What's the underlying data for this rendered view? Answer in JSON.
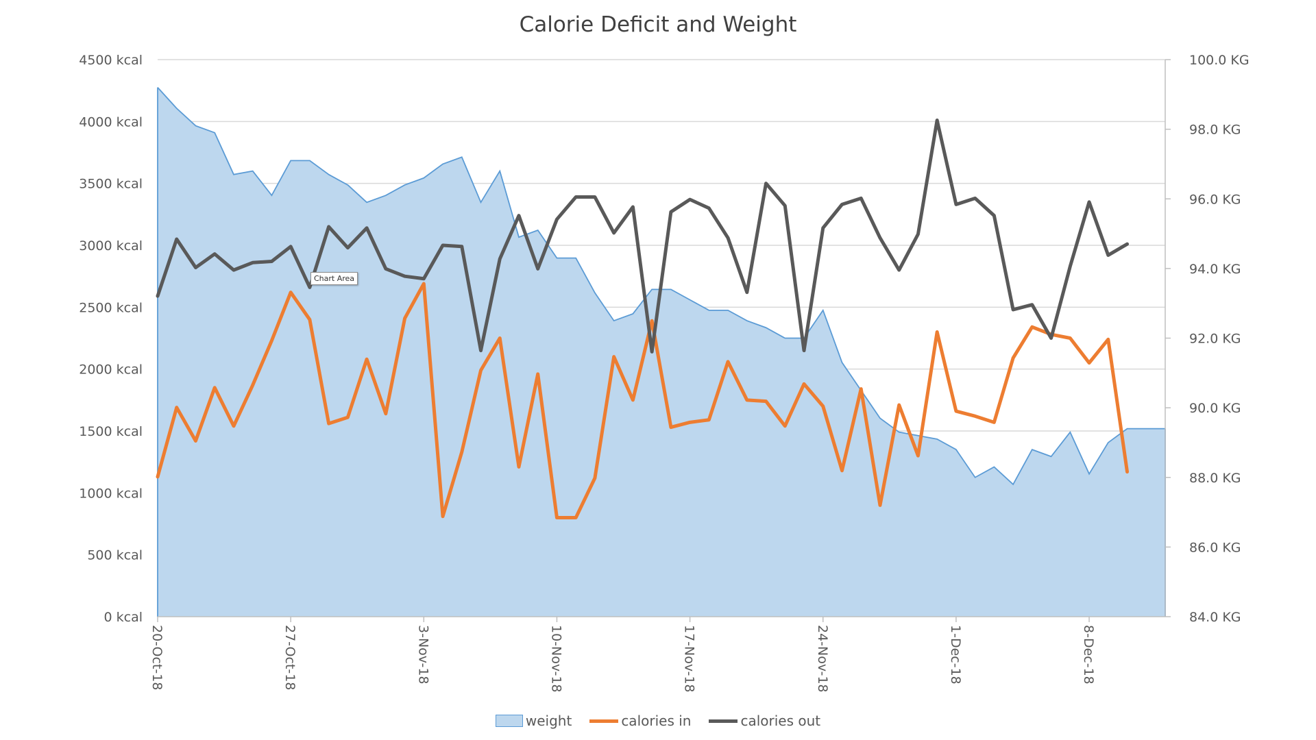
{
  "chart_data": {
    "type": "area+line",
    "title": "Calorie Deficit and Weight",
    "x_tick_labels": [
      "20-Oct-18",
      "27-Oct-18",
      "3-Nov-18",
      "10-Nov-18",
      "17-Nov-18",
      "24-Nov-18",
      "1-Dec-18",
      "8-Dec-18"
    ],
    "x_start": "2018-10-20",
    "days": 53,
    "y_left": {
      "ticks": [
        "0 kcal",
        "500 kcal",
        "1000 kcal",
        "1500 kcal",
        "2000 kcal",
        "2500 kcal",
        "3000 kcal",
        "3500 kcal",
        "4000 kcal",
        "4500 kcal"
      ],
      "range": [
        0,
        4500
      ]
    },
    "y_right": {
      "ticks": [
        "84.0 KG",
        "86.0 KG",
        "88.0 KG",
        "90.0 KG",
        "92.0 KG",
        "94.0 KG",
        "96.0 KG",
        "98.0 KG",
        "100.0 KG"
      ],
      "range": [
        84,
        100
      ]
    },
    "gridlines": true,
    "legend_position": "bottom",
    "series": [
      {
        "name": "weight",
        "axis": "right",
        "kind": "area",
        "color": "#5b9bd5",
        "fill": "#bdd7ee",
        "values": [
          99.2,
          98.6,
          98.1,
          97.9,
          96.7,
          96.8,
          96.1,
          97.1,
          97.1,
          96.7,
          96.4,
          95.9,
          96.1,
          96.4,
          96.6,
          97.0,
          97.2,
          95.9,
          96.8,
          94.9,
          95.1,
          94.3,
          94.3,
          93.3,
          92.5,
          92.7,
          93.4,
          93.4,
          93.1,
          92.8,
          92.8,
          92.5,
          92.3,
          92.0,
          92.0,
          92.8,
          91.3,
          90.5,
          89.7,
          89.3,
          89.2,
          89.1,
          88.8,
          88.0,
          88.3,
          87.8,
          88.8,
          88.6,
          89.3,
          88.1,
          89.0,
          89.4,
          89.4,
          89.4
        ]
      },
      {
        "name": "calories in",
        "axis": "left",
        "kind": "line",
        "color": "#ed7d31",
        "values": [
          1130,
          1690,
          1420,
          1850,
          1540,
          1870,
          2230,
          2620,
          2400,
          1560,
          1610,
          2080,
          1640,
          2410,
          2690,
          810,
          1330,
          1990,
          2250,
          1210,
          1960,
          800,
          800,
          1120,
          2100,
          1750,
          2390,
          1530,
          1570,
          1590,
          2060,
          1750,
          1740,
          1540,
          1880,
          1700,
          1180,
          1840,
          900,
          1710,
          1300,
          2300,
          1660,
          1620,
          1570,
          2090,
          2340,
          2280,
          2250,
          2050,
          2240,
          1170
        ]
      },
      {
        "name": "calories out",
        "axis": "left",
        "kind": "line",
        "color": "#595959",
        "values": [
          2590,
          3050,
          2820,
          2930,
          2800,
          2860,
          2870,
          2990,
          2660,
          3150,
          2980,
          3140,
          2810,
          2750,
          2730,
          3000,
          2990,
          2150,
          2890,
          3240,
          2810,
          3210,
          3390,
          3390,
          3100,
          3310,
          2140,
          3270,
          3370,
          3300,
          3060,
          2620,
          3500,
          3320,
          2150,
          3140,
          3330,
          3380,
          3060,
          2800,
          3090,
          4010,
          3330,
          3380,
          3240,
          2480,
          2520,
          2250,
          2830,
          3350,
          2920,
          3010
        ]
      }
    ]
  },
  "tooltip": "Chart Area"
}
